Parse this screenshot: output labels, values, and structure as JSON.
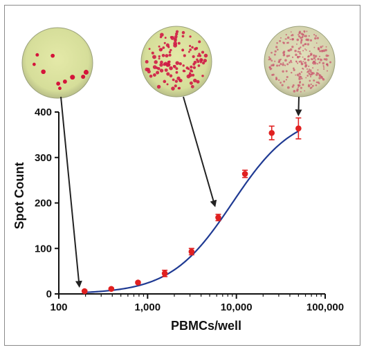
{
  "chart_data": {
    "type": "scatter",
    "title": "",
    "xlabel": "PBMCs/well",
    "ylabel": "Spot Count",
    "x_scale": "log",
    "xlim": [
      100,
      100000
    ],
    "ylim": [
      0,
      400
    ],
    "x_ticks": [
      100,
      1000,
      10000,
      100000
    ],
    "x_tick_labels": [
      "100",
      "1,000",
      "10,000",
      "100,000"
    ],
    "y_ticks": [
      0,
      100,
      200,
      300,
      400
    ],
    "y_tick_labels": [
      "0",
      "100",
      "200",
      "300",
      "400"
    ],
    "grid": false,
    "series": [
      {
        "points": [
          {
            "x": 195,
            "y": 6,
            "err": 2
          },
          {
            "x": 390,
            "y": 11,
            "err": 2
          },
          {
            "x": 780,
            "y": 25,
            "err": 2
          },
          {
            "x": 1560,
            "y": 45,
            "err": 7
          },
          {
            "x": 3125,
            "y": 93,
            "err": 7
          },
          {
            "x": 6250,
            "y": 168,
            "err": 7
          },
          {
            "x": 12500,
            "y": 264,
            "err": 8
          },
          {
            "x": 25000,
            "y": 354,
            "err": 15
          },
          {
            "x": 50000,
            "y": 364,
            "err": 23
          }
        ],
        "fit_curve": {
          "bottom": 0,
          "top": 400,
          "ec50": 9000,
          "hill": 1.25
        }
      }
    ],
    "colors": {
      "points": "#e02020",
      "curve": "#1f3a93",
      "axis": "#111111",
      "arrow": "#222222"
    },
    "inset_images": [
      {
        "name": "well-low-density",
        "icon": "elispot-well-sparse",
        "arrow_to_x": 170,
        "arrow_to_y": 18
      },
      {
        "name": "well-mid-density",
        "icon": "elispot-well-medium",
        "arrow_to_x": 5700,
        "arrow_to_y": 195
      },
      {
        "name": "well-high-density",
        "icon": "elispot-well-dense",
        "arrow_to_x": 50000,
        "arrow_to_y": 395
      }
    ]
  }
}
